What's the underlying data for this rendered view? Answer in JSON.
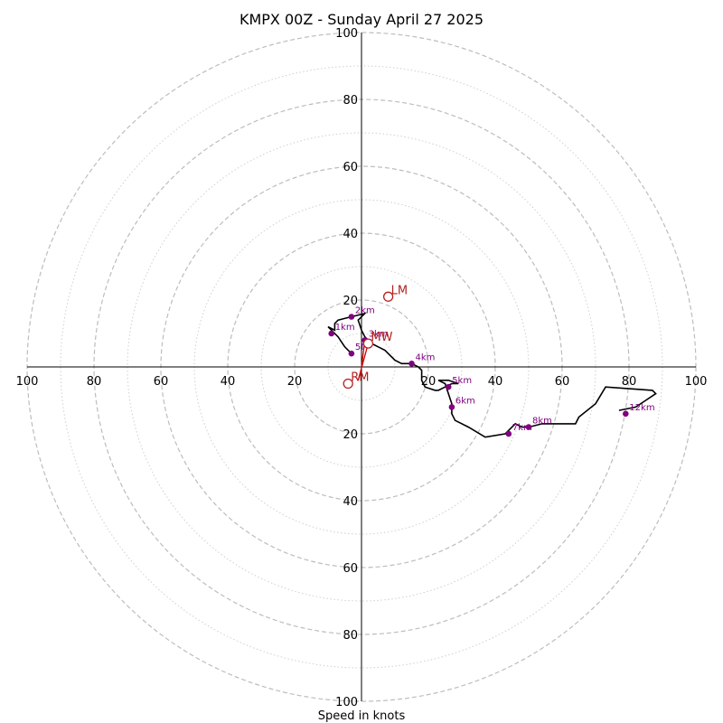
{
  "chart_data": {
    "type": "scatter",
    "subtype": "hodograph",
    "title": "KMPX 00Z - Sunday April 27 2025",
    "xlabel": "Speed in knots",
    "range": [
      -100,
      100
    ],
    "rings_major": [
      20,
      40,
      60,
      80,
      100
    ],
    "rings_minor": [
      10,
      30,
      50,
      70,
      90
    ],
    "x_ticks": [
      "100",
      "80",
      "60",
      "40",
      "20",
      "20",
      "40",
      "60",
      "80",
      "100"
    ],
    "y_ticks": [
      "100",
      "80",
      "60",
      "40",
      "20",
      "20",
      "40",
      "60",
      "80",
      "100"
    ],
    "colors": {
      "hodograph": "#000000",
      "km_markers": "#800080",
      "storm_motion": "#b22222",
      "shear_vector": "#cc0000",
      "grid": "#bdbdbd"
    },
    "hodograph": [
      [
        -3,
        4
      ],
      [
        -5,
        6
      ],
      [
        -7,
        9
      ],
      [
        -10,
        12
      ],
      [
        -8,
        11
      ],
      [
        -8,
        13
      ],
      [
        -7,
        14
      ],
      [
        -3,
        15
      ],
      [
        1,
        16
      ],
      [
        -1,
        14
      ],
      [
        0,
        11
      ],
      [
        1,
        9
      ],
      [
        3,
        7
      ],
      [
        5,
        6
      ],
      [
        7,
        5
      ],
      [
        10,
        2
      ],
      [
        12,
        1
      ],
      [
        15,
        1
      ],
      [
        17,
        0
      ],
      [
        18,
        -1
      ],
      [
        18,
        -4
      ],
      [
        19,
        -6
      ],
      [
        22,
        -7
      ],
      [
        23,
        -7
      ],
      [
        25,
        -6
      ],
      [
        27,
        -5
      ],
      [
        29,
        -5
      ],
      [
        26,
        -4
      ],
      [
        24,
        -4
      ],
      [
        23,
        -4
      ],
      [
        23,
        -4
      ],
      [
        25,
        -5
      ],
      [
        26,
        -8
      ],
      [
        27,
        -11
      ],
      [
        27,
        -14
      ],
      [
        28,
        -16
      ],
      [
        32,
        -18
      ],
      [
        37,
        -21
      ],
      [
        43,
        -20
      ],
      [
        45,
        -18
      ],
      [
        46,
        -17
      ],
      [
        48,
        -18
      ],
      [
        50,
        -18
      ],
      [
        54,
        -17
      ],
      [
        59,
        -17
      ],
      [
        64,
        -17
      ],
      [
        65,
        -15
      ],
      [
        70,
        -11
      ],
      [
        73,
        -6
      ],
      [
        87,
        -7
      ],
      [
        88,
        -8
      ],
      [
        85,
        -10
      ],
      [
        82,
        -12
      ],
      [
        77,
        -13
      ]
    ],
    "km_markers": [
      {
        "label": "1km",
        "u": -9,
        "v": 10
      },
      {
        "label": "2km",
        "u": -3,
        "v": 15
      },
      {
        "label": "3km",
        "u": 1,
        "v": 8
      },
      {
        "label": "4km",
        "u": 15,
        "v": 1
      },
      {
        "label": "5km",
        "u": 26,
        "v": -6
      },
      {
        "label": "6km",
        "u": 27,
        "v": -12
      },
      {
        "label": "7km",
        "u": 44,
        "v": -20
      },
      {
        "label": "8km",
        "u": 50,
        "v": -18
      },
      {
        "label": "12km",
        "u": 79,
        "v": -14
      },
      {
        "label": "5f",
        "u": -3,
        "v": 4
      }
    ],
    "storm_motion": [
      {
        "label": "LM",
        "u": 8,
        "v": 21
      },
      {
        "label": "MW",
        "u": 2,
        "v": 7
      },
      {
        "label": "RM",
        "u": -4,
        "v": -5
      }
    ],
    "shear_vectors": [
      {
        "from": [
          0,
          0
        ],
        "to": [
          1,
          8
        ]
      },
      {
        "from": [
          -1,
          -4
        ],
        "to": [
          2,
          7
        ]
      }
    ]
  }
}
